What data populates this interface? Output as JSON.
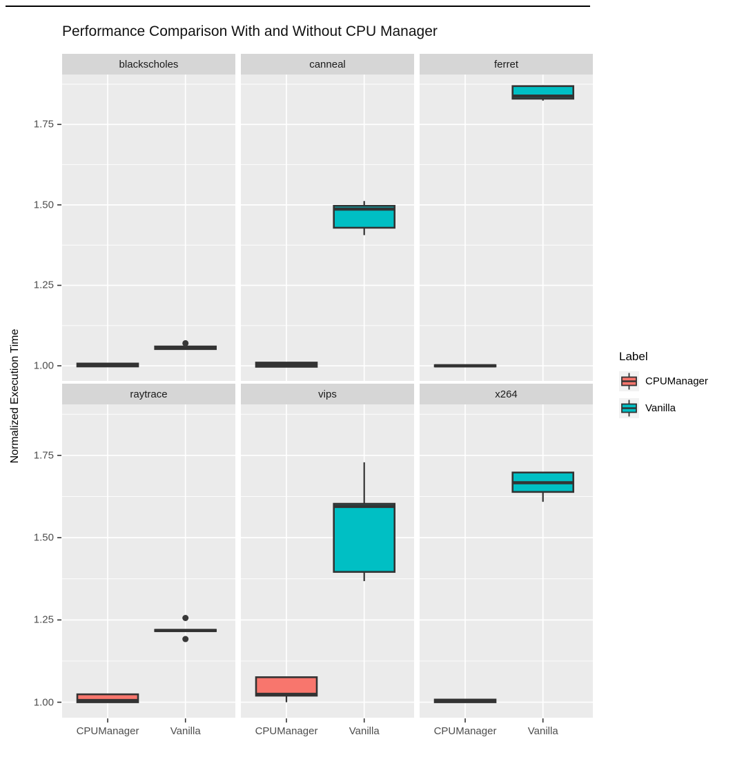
{
  "title": "Performance Comparison With and Without CPU Manager",
  "legend": {
    "title": "Label",
    "position": "right",
    "entries": [
      {
        "label": "CPUManager",
        "color": "#F8766D"
      },
      {
        "label": "Vanilla",
        "color": "#00BFC4"
      }
    ]
  },
  "colors": {
    "cpumanager_fill": "#F8766D",
    "vanilla_fill": "#00BFC4",
    "box_stroke": "#333333",
    "panel_background": "#EBEBEB",
    "strip_background": "#D6D6D6",
    "gridline": "#FFFFFF",
    "axis_text": "#4D4D4D"
  },
  "chart_data": {
    "type": "boxplot",
    "title": "Performance Comparison With and Without CPU Manager",
    "xlabel": "",
    "ylabel": "Normalized Execution Time",
    "ylim": [
      0.953,
      1.905
    ],
    "y_major_ticks": [
      1.0,
      1.25,
      1.5,
      1.75
    ],
    "y_minor_gridlines": [
      1.125,
      1.375,
      1.625,
      1.875
    ],
    "y_tick_labels": [
      "1.00",
      "1.25",
      "1.50",
      "1.75"
    ],
    "x_categories": [
      "CPUManager",
      "Vanilla"
    ],
    "grid": true,
    "legend_position": "right",
    "facets": [
      {
        "name": "blackscholes",
        "boxes": [
          {
            "group": "CPUManager",
            "min": 0.996,
            "q1": 0.998,
            "median": 1.002,
            "q3": 1.007,
            "max": 1.009,
            "outliers": []
          },
          {
            "group": "Vanilla",
            "min": 1.05,
            "q1": 1.052,
            "median": 1.056,
            "q3": 1.06,
            "max": 1.062,
            "outliers": [
              1.07
            ]
          }
        ]
      },
      {
        "name": "canneal",
        "boxes": [
          {
            "group": "CPUManager",
            "min": 0.995,
            "q1": 0.997,
            "median": 1.003,
            "q3": 1.01,
            "max": 1.012,
            "outliers": []
          },
          {
            "group": "Vanilla",
            "min": 1.406,
            "q1": 1.429,
            "median": 1.487,
            "q3": 1.497,
            "max": 1.512,
            "outliers": []
          }
        ]
      },
      {
        "name": "ferret",
        "boxes": [
          {
            "group": "CPUManager",
            "min": 0.997,
            "q1": 0.998,
            "median": 1.0,
            "q3": 1.002,
            "max": 1.003,
            "outliers": []
          },
          {
            "group": "Vanilla",
            "min": 1.824,
            "q1": 1.83,
            "median": 1.838,
            "q3": 1.869,
            "max": 1.872,
            "outliers": []
          }
        ]
      },
      {
        "name": "raytrace",
        "boxes": [
          {
            "group": "CPUManager",
            "min": 0.998,
            "q1": 1.0,
            "median": 1.005,
            "q3": 1.024,
            "max": 1.026,
            "outliers": []
          },
          {
            "group": "Vanilla",
            "min": 1.214,
            "q1": 1.216,
            "median": 1.218,
            "q3": 1.22,
            "max": 1.222,
            "outliers": [
              1.256,
              1.192
            ]
          }
        ]
      },
      {
        "name": "vips",
        "boxes": [
          {
            "group": "CPUManager",
            "min": 1.0,
            "q1": 1.02,
            "median": 1.024,
            "q3": 1.076,
            "max": 1.077,
            "outliers": []
          },
          {
            "group": "Vanilla",
            "min": 1.368,
            "q1": 1.396,
            "median": 1.595,
            "q3": 1.603,
            "max": 1.729,
            "outliers": []
          }
        ]
      },
      {
        "name": "x264",
        "boxes": [
          {
            "group": "CPUManager",
            "min": 0.998,
            "q1": 1.0,
            "median": 1.004,
            "q3": 1.008,
            "max": 1.01,
            "outliers": []
          },
          {
            "group": "Vanilla",
            "min": 1.609,
            "q1": 1.639,
            "median": 1.667,
            "q3": 1.698,
            "max": 1.7,
            "outliers": []
          }
        ]
      }
    ]
  }
}
